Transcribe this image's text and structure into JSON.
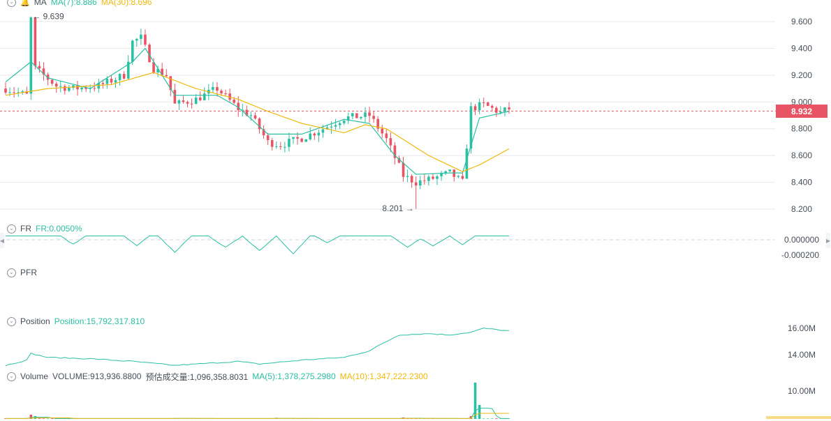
{
  "main_legend": {
    "indicator": "MA",
    "ma7": "MA(7):8.886",
    "ma30": "MA(30):8.696"
  },
  "fr_legend": {
    "name": "FR",
    "value": "FR:0.0050%"
  },
  "pfr_legend": {
    "name": "PFR"
  },
  "position_legend": {
    "name": "Position",
    "value": "Position:15,792,317.810"
  },
  "volume_legend": {
    "name": "Volume",
    "volume": "VOLUME:913,936.8800",
    "estimated": "预估成交量:1,096,358.8031",
    "ma5": "MA(5):1,378,275.2980",
    "ma10": "MA(10):1,347,222.2300"
  },
  "current_price": "8.932",
  "high_label": "9.639",
  "low_label": "8.201",
  "colors": {
    "up": "#2bbfa3",
    "down": "#e85463",
    "ma7": "#2bbfa3",
    "ma30": "#f0b90b",
    "grid": "#e6e8ea"
  },
  "chart_data": [
    {
      "type": "candlestick",
      "y_ticks": [
        "9.600",
        "9.400",
        "9.200",
        "9.000",
        "8.800",
        "8.600",
        "8.400",
        "8.200"
      ],
      "ylim": [
        8.2,
        9.6
      ],
      "current_price": 8.932,
      "high": 9.639,
      "low": 8.201,
      "candle_count": 120,
      "price_path": [
        [
          0,
          9.1
        ],
        [
          5,
          9.05
        ],
        [
          6,
          9.62
        ],
        [
          7,
          9.25
        ],
        [
          9,
          9.2
        ],
        [
          12,
          9.12
        ],
        [
          16,
          9.1
        ],
        [
          22,
          9.12
        ],
        [
          28,
          9.2
        ],
        [
          30,
          9.45
        ],
        [
          32,
          9.48
        ],
        [
          35,
          9.25
        ],
        [
          38,
          9.2
        ],
        [
          40,
          8.98
        ],
        [
          45,
          9.02
        ],
        [
          50,
          9.1
        ],
        [
          55,
          8.95
        ],
        [
          58,
          8.9
        ],
        [
          62,
          8.7
        ],
        [
          65,
          8.68
        ],
        [
          70,
          8.73
        ],
        [
          75,
          8.8
        ],
        [
          80,
          8.88
        ],
        [
          86,
          8.9
        ],
        [
          90,
          8.72
        ],
        [
          94,
          8.45
        ],
        [
          97,
          8.4
        ],
        [
          100,
          8.42
        ],
        [
          105,
          8.47
        ],
        [
          108,
          8.4
        ],
        [
          110,
          8.95
        ],
        [
          113,
          8.98
        ],
        [
          117,
          8.92
        ],
        [
          119,
          8.95
        ]
      ],
      "ma7_path": [
        [
          0,
          9.15
        ],
        [
          6,
          9.3
        ],
        [
          10,
          9.18
        ],
        [
          20,
          9.1
        ],
        [
          30,
          9.3
        ],
        [
          33,
          9.4
        ],
        [
          40,
          9.05
        ],
        [
          50,
          9.05
        ],
        [
          55,
          8.96
        ],
        [
          62,
          8.76
        ],
        [
          70,
          8.76
        ],
        [
          80,
          8.87
        ],
        [
          86,
          8.84
        ],
        [
          92,
          8.6
        ],
        [
          97,
          8.46
        ],
        [
          105,
          8.47
        ],
        [
          108,
          8.47
        ],
        [
          112,
          8.88
        ],
        [
          119,
          8.93
        ]
      ],
      "ma30_path": [
        [
          0,
          9.05
        ],
        [
          10,
          9.1
        ],
        [
          25,
          9.13
        ],
        [
          35,
          9.22
        ],
        [
          45,
          9.1
        ],
        [
          55,
          9.02
        ],
        [
          62,
          8.93
        ],
        [
          70,
          8.84
        ],
        [
          80,
          8.77
        ],
        [
          85,
          8.83
        ],
        [
          90,
          8.8
        ],
        [
          100,
          8.6
        ],
        [
          108,
          8.48
        ],
        [
          112,
          8.53
        ],
        [
          119,
          8.65
        ]
      ]
    },
    {
      "type": "line",
      "y_ticks": [
        "0.000000",
        "-0.000200"
      ],
      "ylim": [
        -0.0002,
        0.0001
      ],
      "baseline": 5e-05,
      "dips": [
        [
          16,
          -6e-05,
          2
        ],
        [
          31,
          -8e-05,
          2
        ],
        [
          40,
          -0.00016,
          3
        ],
        [
          52,
          -0.0001,
          3
        ],
        [
          60,
          -0.00014,
          3
        ],
        [
          68,
          -0.00018,
          3
        ],
        [
          76,
          -4e-05,
          2
        ],
        [
          95,
          -0.0001,
          3
        ],
        [
          101,
          -8e-05,
          3
        ],
        [
          108,
          -6e-05,
          2
        ]
      ]
    },
    {
      "type": "line",
      "y_ticks": [
        "16.00M",
        "14.00M"
      ],
      "ylim": [
        13000000,
        17000000
      ],
      "path": [
        [
          0,
          13.2
        ],
        [
          5,
          13.6
        ],
        [
          6,
          14.1
        ],
        [
          10,
          13.8
        ],
        [
          20,
          13.7
        ],
        [
          30,
          13.5
        ],
        [
          40,
          13.2
        ],
        [
          55,
          13.5
        ],
        [
          60,
          13.3
        ],
        [
          70,
          13.6
        ],
        [
          80,
          13.8
        ],
        [
          86,
          14.3
        ],
        [
          90,
          15.0
        ],
        [
          93,
          15.5
        ],
        [
          100,
          15.6
        ],
        [
          105,
          15.5
        ],
        [
          110,
          15.7
        ],
        [
          113,
          16.0
        ],
        [
          119,
          15.8
        ]
      ]
    },
    {
      "type": "bar",
      "y_ticks": [
        "10.00M"
      ],
      "ylim": [
        0,
        11000000
      ],
      "spikes": [
        [
          6,
          1.5
        ],
        [
          7,
          1.0
        ],
        [
          40,
          0.3
        ],
        [
          64,
          0.4
        ],
        [
          94,
          0.5
        ],
        [
          97,
          0.3
        ],
        [
          110,
          1.0
        ],
        [
          111,
          13.0
        ],
        [
          112,
          5.0
        ]
      ]
    }
  ]
}
